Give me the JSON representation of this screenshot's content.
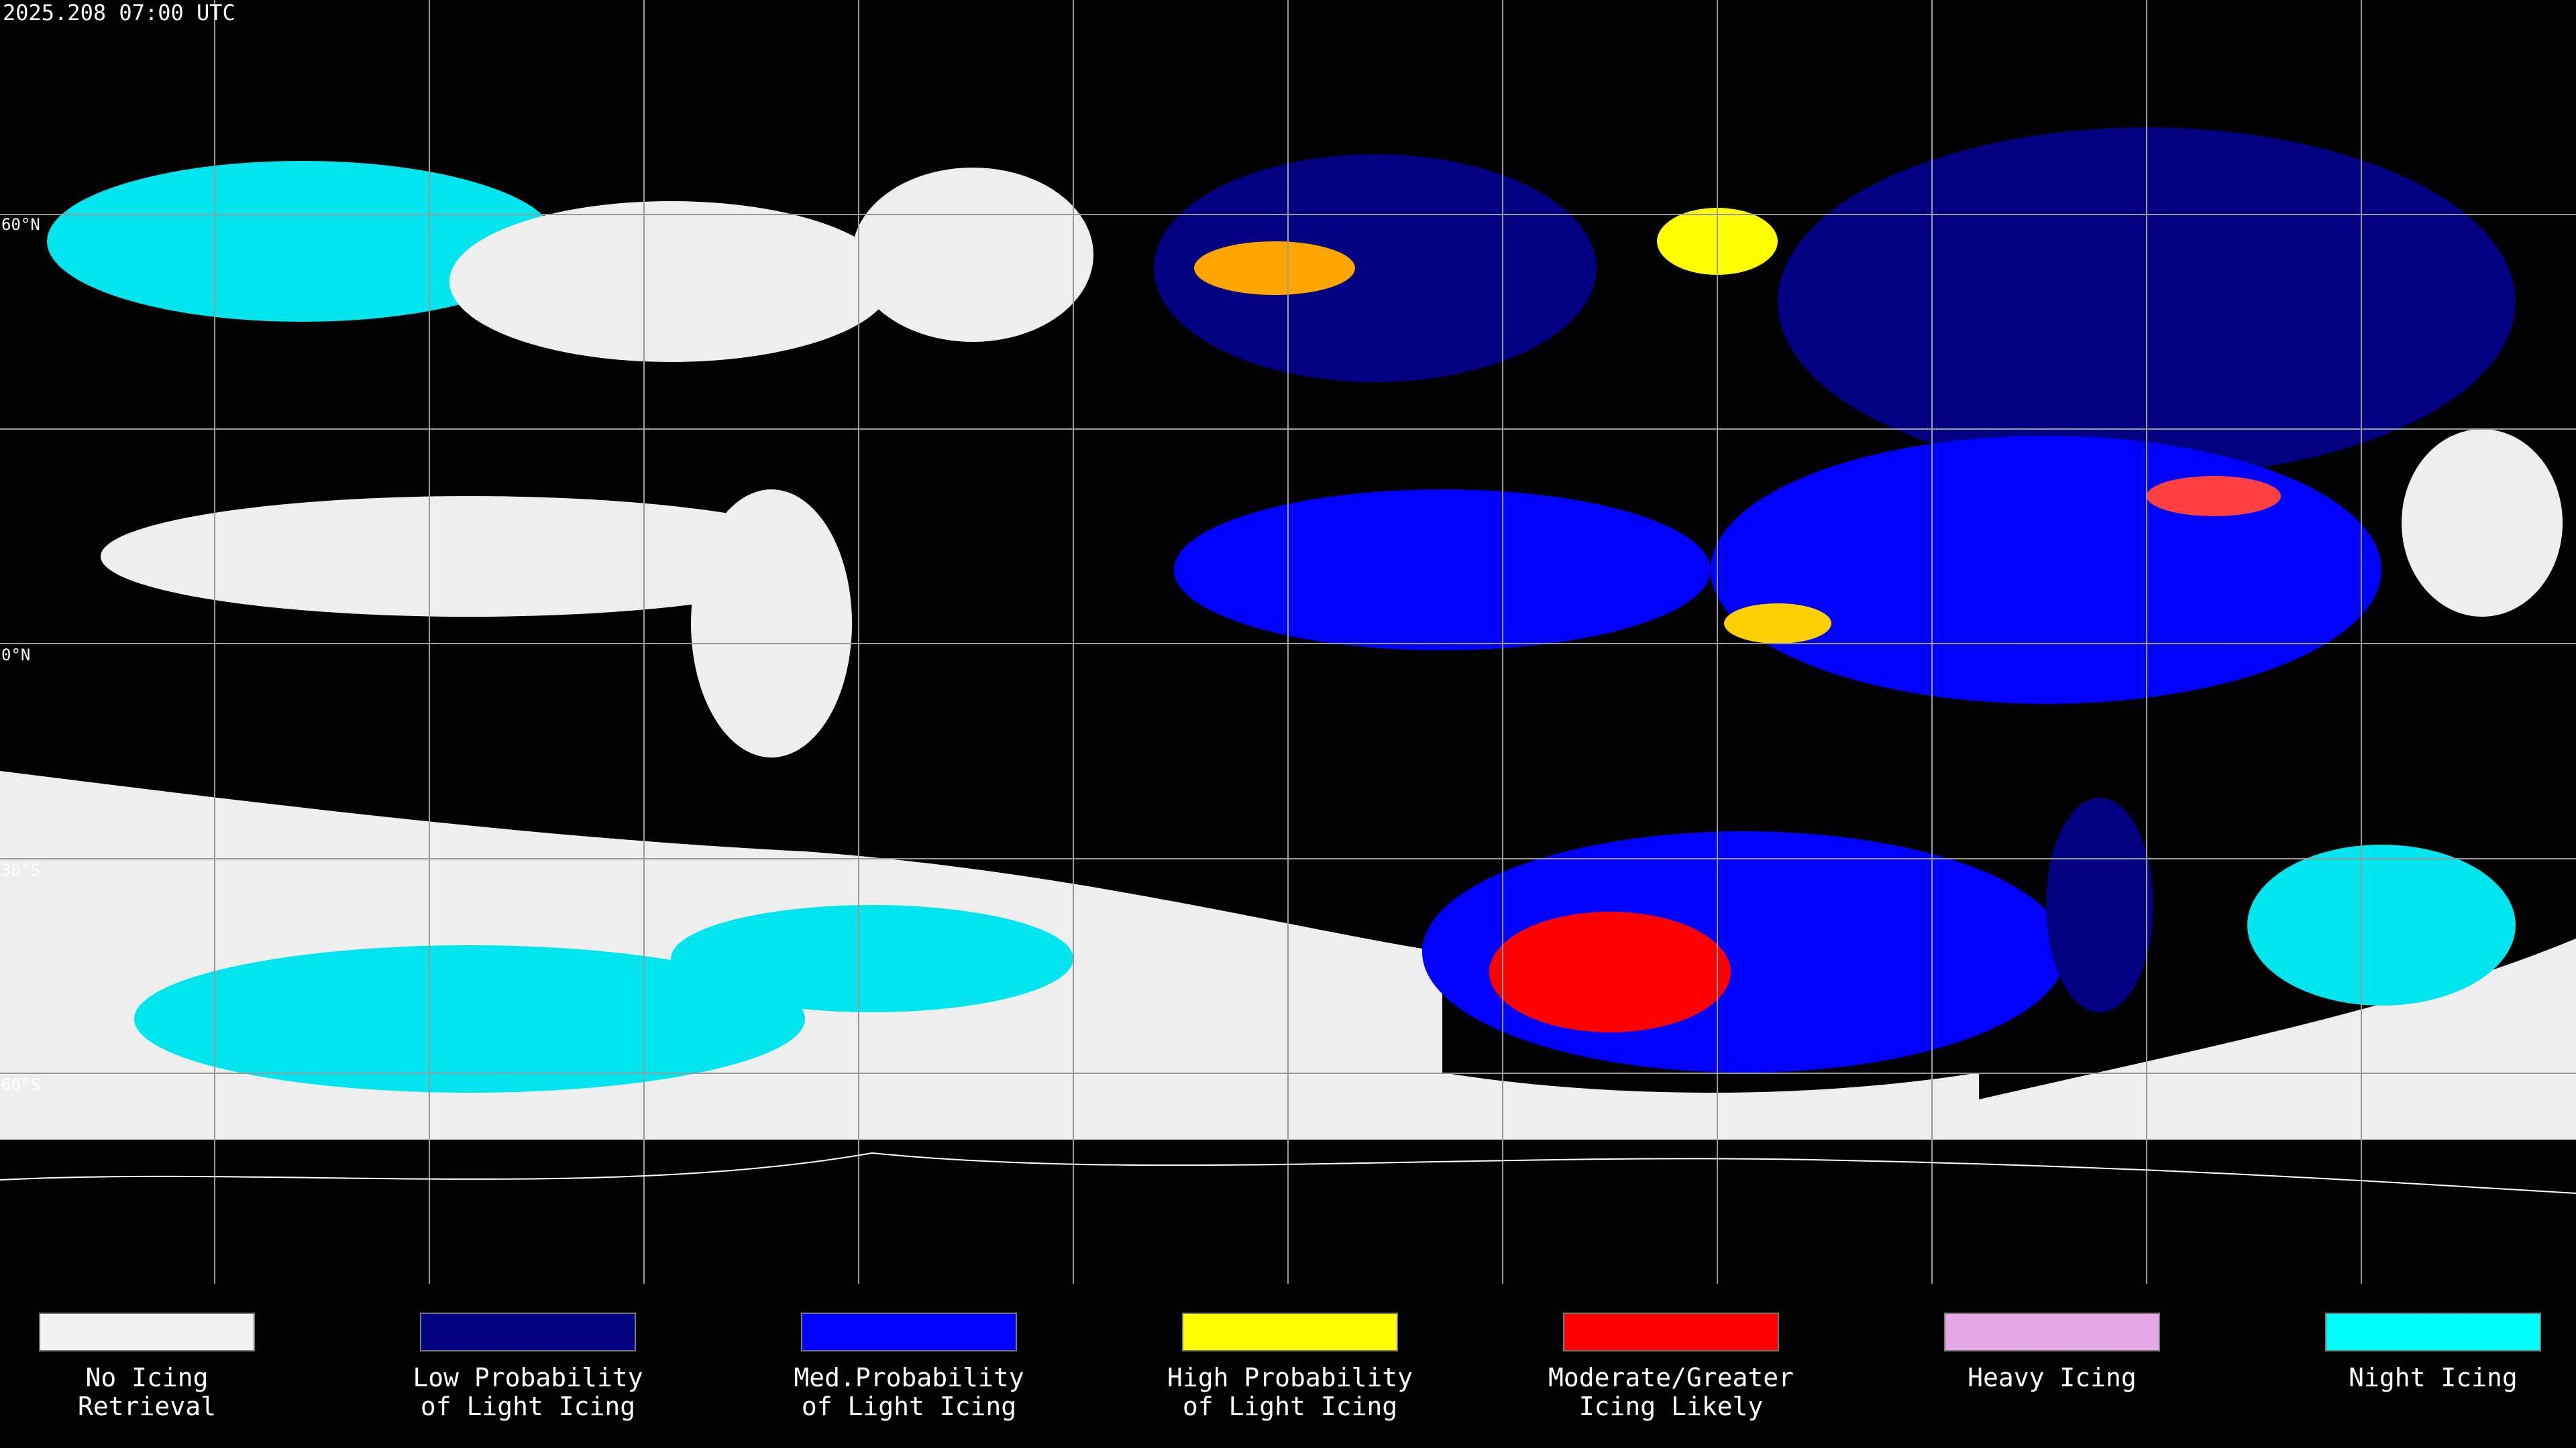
{
  "header": {
    "timestamp": "2025.208 07:00 UTC"
  },
  "map": {
    "lat_labels": [
      "60°N",
      "0°N",
      "30°S",
      "60°S"
    ]
  },
  "legend": {
    "items": [
      {
        "lines": [
          "No Icing",
          "Retrieval"
        ],
        "color": "#f0f0f0"
      },
      {
        "lines": [
          "Low Probability",
          "of Light Icing"
        ],
        "color": "#000080"
      },
      {
        "lines": [
          "Med.Probability",
          "of Light Icing"
        ],
        "color": "#0000ff"
      },
      {
        "lines": [
          "High Probability",
          "of Light Icing"
        ],
        "color": "#ffff00"
      },
      {
        "lines": [
          "Moderate/Greater",
          "Icing Likely"
        ],
        "color": "#ff0000"
      },
      {
        "lines": [
          "Heavy Icing"
        ],
        "color": "#e6a8e6"
      },
      {
        "lines": [
          "Night Icing"
        ],
        "color": "#00ffff"
      }
    ]
  }
}
